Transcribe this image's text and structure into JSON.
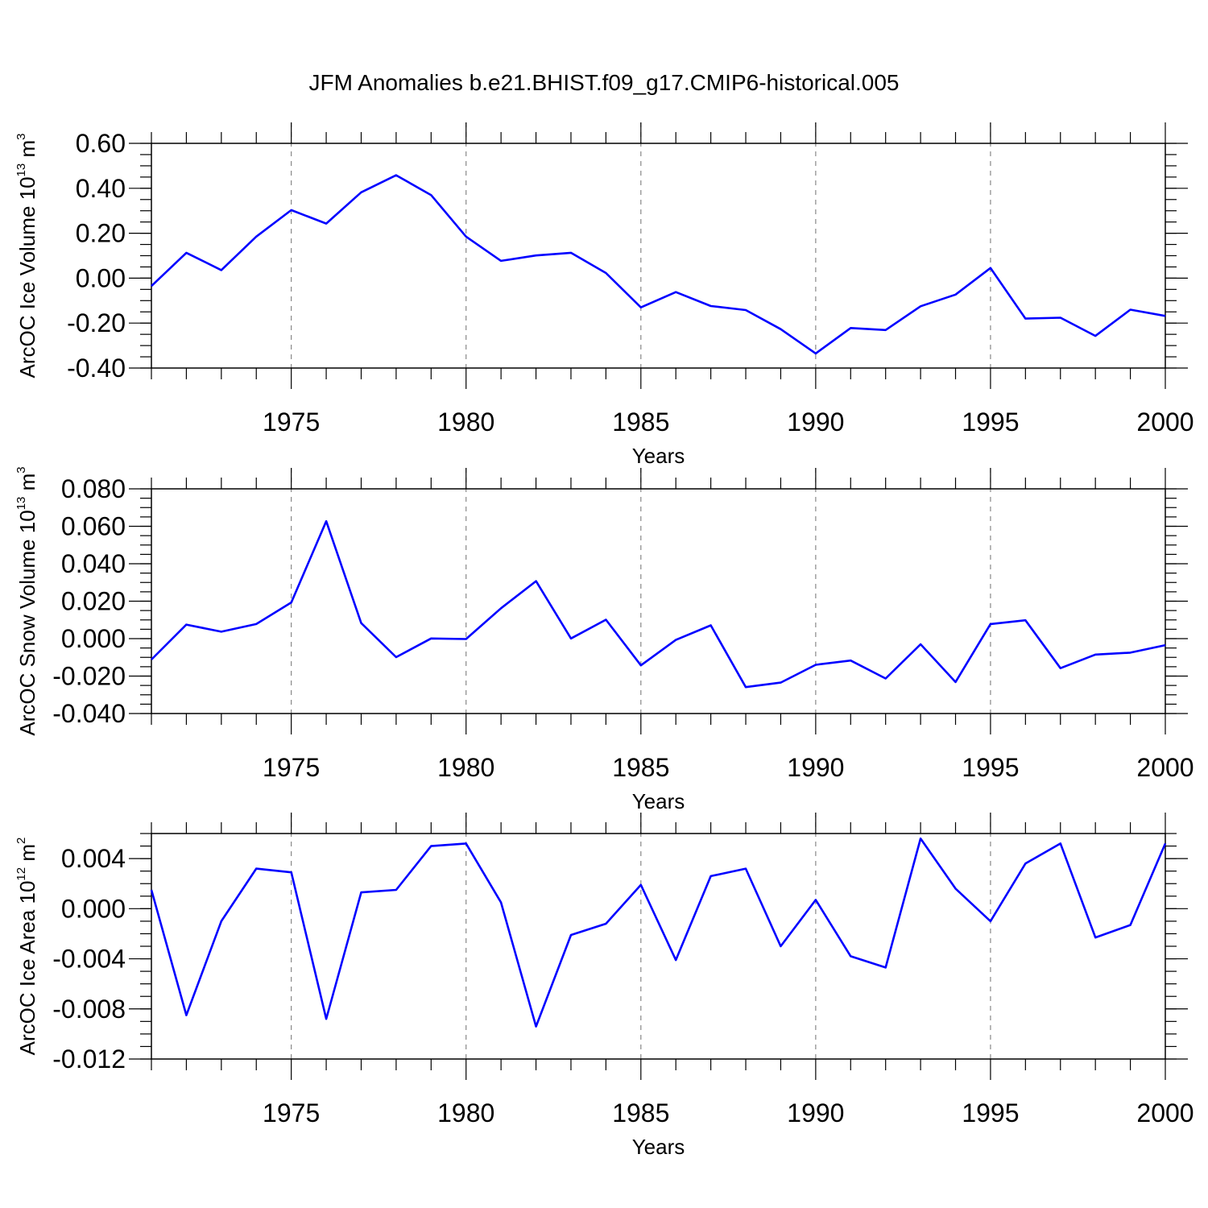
{
  "title": "JFM Anomalies b.e21.BHIST.f09_g17.CMIP6-historical.005",
  "colors": {
    "series": "#0000ff",
    "grid": "#888888",
    "axis": "#000000"
  },
  "chart_data": [
    {
      "type": "line",
      "ylabel": {
        "text": "ArcOC Ice Volume 10",
        "sup": "13",
        "unit": " m",
        "unit_sup": "3"
      },
      "xlabel": "Years",
      "xlim": [
        1971,
        2000
      ],
      "ylim": [
        -0.4,
        0.6
      ],
      "yticks": [
        -0.4,
        -0.2,
        0.0,
        0.2,
        0.4,
        0.6
      ],
      "ytick_labels": [
        "-0.40",
        "-0.20",
        "0.00",
        "0.20",
        "0.40",
        "0.60"
      ],
      "yminor_step": 0.05,
      "xticks": [
        1975,
        1980,
        1985,
        1990,
        1995,
        2000
      ],
      "xtick_labels": [
        "1975",
        "1980",
        "1985",
        "1990",
        "1995",
        "2000"
      ],
      "grid": "x-major-dashed",
      "x": [
        1971,
        1972,
        1973,
        1974,
        1975,
        1976,
        1977,
        1978,
        1979,
        1980,
        1981,
        1982,
        1983,
        1984,
        1985,
        1986,
        1987,
        1988,
        1989,
        1990,
        1991,
        1992,
        1993,
        1994,
        1995,
        1996,
        1997,
        1998,
        1999,
        2000
      ],
      "series": [
        {
          "values": [
            -0.035,
            0.113,
            0.036,
            0.185,
            0.303,
            0.243,
            0.382,
            0.458,
            0.37,
            0.185,
            0.077,
            0.101,
            0.113,
            0.023,
            -0.13,
            -0.062,
            -0.124,
            -0.142,
            -0.227,
            -0.335,
            -0.222,
            -0.231,
            -0.125,
            -0.073,
            0.045,
            -0.18,
            -0.176,
            -0.257,
            -0.14,
            -0.168
          ]
        }
      ]
    },
    {
      "type": "line",
      "ylabel": {
        "text": "ArcOC Snow Volume 10",
        "sup": "13",
        "unit": " m",
        "unit_sup": "3"
      },
      "xlabel": "Years",
      "xlim": [
        1971,
        2000
      ],
      "ylim": [
        -0.04,
        0.08
      ],
      "yticks": [
        -0.04,
        -0.02,
        0.0,
        0.02,
        0.04,
        0.06,
        0.08
      ],
      "ytick_labels": [
        "-0.040",
        "-0.020",
        "0.000",
        "0.020",
        "0.040",
        "0.060",
        "0.080"
      ],
      "yminor_step": 0.005,
      "xticks": [
        1975,
        1980,
        1985,
        1990,
        1995,
        2000
      ],
      "xtick_labels": [
        "1975",
        "1980",
        "1985",
        "1990",
        "1995",
        "2000"
      ],
      "grid": "x-major-dashed",
      "x": [
        1971,
        1972,
        1973,
        1974,
        1975,
        1976,
        1977,
        1978,
        1979,
        1980,
        1981,
        1982,
        1983,
        1984,
        1985,
        1986,
        1987,
        1988,
        1989,
        1990,
        1991,
        1992,
        1993,
        1994,
        1995,
        1996,
        1997,
        1998,
        1999,
        2000
      ],
      "series": [
        {
          "values": [
            -0.0112,
            0.0075,
            0.0037,
            0.0078,
            0.0193,
            0.0627,
            0.0083,
            -0.0099,
            0.0001,
            -0.0002,
            0.0162,
            0.0307,
            0.0001,
            0.0101,
            -0.0143,
            -0.0007,
            0.0071,
            -0.0259,
            -0.0235,
            -0.014,
            -0.0117,
            -0.0213,
            -0.003,
            -0.0232,
            0.0078,
            0.0098,
            -0.0158,
            -0.0085,
            -0.0075,
            -0.0035
          ]
        }
      ]
    },
    {
      "type": "line",
      "ylabel": {
        "text": "ArcOC Ice Area 10",
        "sup": "12",
        "unit": " m",
        "unit_sup": "2"
      },
      "xlabel": "Years",
      "xlim": [
        1971,
        2000
      ],
      "ylim": [
        -0.012,
        0.006
      ],
      "yticks": [
        -0.012,
        -0.008,
        -0.004,
        0.0,
        0.004
      ],
      "ytick_labels": [
        "-0.012",
        "-0.008",
        "-0.004",
        "0.000",
        "0.004"
      ],
      "yminor_step": 0.001,
      "xticks": [
        1975,
        1980,
        1985,
        1990,
        1995,
        2000
      ],
      "xtick_labels": [
        "1975",
        "1980",
        "1985",
        "1990",
        "1995",
        "2000"
      ],
      "grid": "x-major-dashed",
      "x": [
        1971,
        1972,
        1973,
        1974,
        1975,
        1976,
        1977,
        1978,
        1979,
        1980,
        1981,
        1982,
        1983,
        1984,
        1985,
        1986,
        1987,
        1988,
        1989,
        1990,
        1991,
        1992,
        1993,
        1994,
        1995,
        1996,
        1997,
        1998,
        1999,
        2000
      ],
      "series": [
        {
          "values": [
            0.0015,
            -0.0085,
            -0.001,
            0.0032,
            0.0029,
            -0.0088,
            0.0013,
            0.0015,
            0.005,
            0.0052,
            0.0005,
            -0.0094,
            -0.0021,
            -0.0012,
            0.0019,
            -0.0041,
            0.0026,
            0.0032,
            -0.003,
            0.0007,
            -0.0038,
            -0.0047,
            0.0056,
            0.0016,
            -0.001,
            0.0036,
            0.0052,
            -0.0023,
            -0.0013,
            0.0052
          ]
        }
      ]
    }
  ]
}
